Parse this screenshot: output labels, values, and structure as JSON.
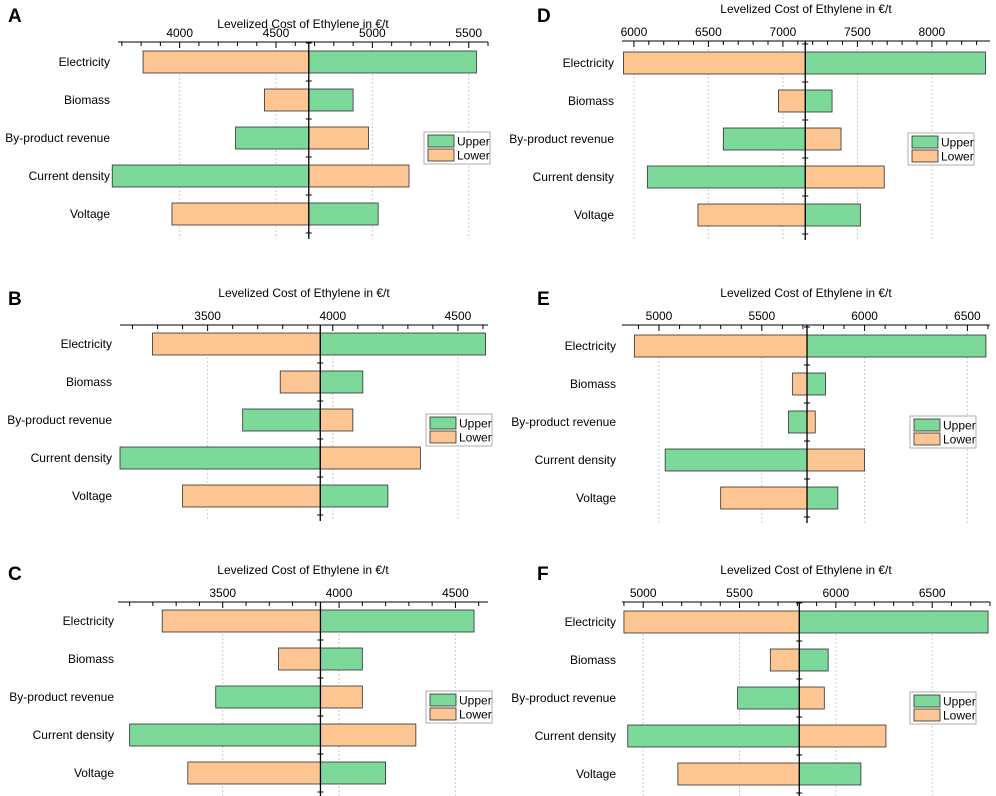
{
  "colors": {
    "upper": "#7dd99a",
    "lower": "#fdc592",
    "bar_stroke": "#2e2e2e",
    "grid": "#cccccc"
  },
  "chart_data": [
    {
      "panel": "A",
      "type": "bar",
      "orientation": "horizontal-tornado",
      "title": "Levelized Cost of Ethylene in €/t",
      "categories": [
        "Electricity",
        "Biomass",
        "By-product revenue",
        "Current density",
        "Voltage"
      ],
      "base": 4670,
      "xlim": [
        3680,
        5600
      ],
      "major_ticks": [
        4000,
        4500,
        5000,
        5500
      ],
      "series": [
        {
          "name": "Upper",
          "values": [
            5540,
            4900,
            4290,
            3650,
            5030
          ]
        },
        {
          "name": "Lower",
          "values": [
            3810,
            4440,
            4980,
            5190,
            3960
          ]
        }
      ],
      "legend": {
        "position": "right",
        "labels": [
          "Upper",
          "Lower"
        ]
      }
    },
    {
      "panel": "B",
      "type": "bar",
      "orientation": "horizontal-tornado",
      "title": "Levelized Cost of Ethylene in €/t",
      "categories": [
        "Electricity",
        "Biomass",
        "By-product revenue",
        "Current density",
        "Voltage"
      ],
      "base": 3950,
      "xlim": [
        3150,
        4620
      ],
      "major_ticks": [
        3500,
        4000,
        4500
      ],
      "series": [
        {
          "name": "Upper",
          "values": [
            4610,
            4120,
            3640,
            3150,
            4220
          ]
        },
        {
          "name": "Lower",
          "values": [
            3280,
            3790,
            4080,
            4350,
            3400
          ]
        }
      ],
      "legend": {
        "position": "right",
        "labels": [
          "Upper",
          "Lower"
        ]
      }
    },
    {
      "panel": "C",
      "type": "bar",
      "orientation": "horizontal-tornado",
      "title": "Levelized Cost of Ethylene in €/t",
      "categories": [
        "Electricity",
        "Biomass",
        "By-product revenue",
        "Current density",
        "Voltage"
      ],
      "base": 3920,
      "xlim": [
        3050,
        4640
      ],
      "major_ticks": [
        3500,
        4000,
        4500
      ],
      "series": [
        {
          "name": "Upper",
          "values": [
            4580,
            4100,
            3470,
            3100,
            4200
          ]
        },
        {
          "name": "Lower",
          "values": [
            3240,
            3740,
            4100,
            4330,
            3350
          ]
        }
      ],
      "legend": {
        "position": "right",
        "labels": [
          "Upper",
          "Lower"
        ]
      }
    },
    {
      "panel": "D",
      "type": "bar",
      "orientation": "horizontal-tornado",
      "title": "Levelized Cost of Ethylene in €/t",
      "categories": [
        "Electricity",
        "Biomass",
        "By-product revenue",
        "Current density",
        "Voltage"
      ],
      "base": 7150,
      "xlim": [
        5920,
        8390
      ],
      "major_ticks": [
        6000,
        6500,
        7000,
        7500,
        8000
      ],
      "series": [
        {
          "name": "Upper",
          "values": [
            8360,
            7330,
            6600,
            6090,
            7520
          ]
        },
        {
          "name": "Lower",
          "values": [
            5930,
            6970,
            7390,
            7680,
            6430
          ]
        }
      ],
      "legend": {
        "position": "right",
        "labels": [
          "Upper",
          "Lower"
        ]
      }
    },
    {
      "panel": "E",
      "type": "bar",
      "orientation": "horizontal-tornado",
      "title": "Levelized Cost of Ethylene in €/t",
      "categories": [
        "Electricity",
        "Biomass",
        "By-product revenue",
        "Current density",
        "Voltage"
      ],
      "base": 5720,
      "xlim": [
        4820,
        6610
      ],
      "major_ticks": [
        5000,
        5500,
        6000,
        6500
      ],
      "series": [
        {
          "name": "Upper",
          "values": [
            6590,
            5810,
            5630,
            5030,
            5870
          ]
        },
        {
          "name": "Lower",
          "values": [
            4880,
            5650,
            5760,
            6000,
            5300
          ]
        }
      ],
      "legend": {
        "position": "right",
        "labels": [
          "Upper",
          "Lower"
        ]
      }
    },
    {
      "panel": "F",
      "type": "bar",
      "orientation": "horizontal-tornado",
      "title": "Levelized Cost of Ethylene in €/t",
      "categories": [
        "Electricity",
        "Biomass",
        "By-product revenue",
        "Current density",
        "Voltage"
      ],
      "base": 5810,
      "xlim": [
        4890,
        6800
      ],
      "major_ticks": [
        5000,
        5500,
        6000,
        6500
      ],
      "series": [
        {
          "name": "Upper",
          "values": [
            6790,
            5960,
            5490,
            4920,
            6130
          ]
        },
        {
          "name": "Lower",
          "values": [
            4900,
            5660,
            5940,
            6260,
            5180
          ]
        }
      ],
      "legend": {
        "position": "right",
        "labels": [
          "Upper",
          "Lower"
        ]
      }
    }
  ]
}
